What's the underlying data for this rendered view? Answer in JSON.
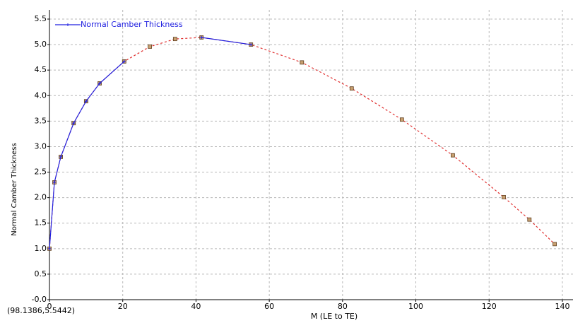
{
  "chart_data": {
    "type": "line",
    "x_label": "M (LE to TE)",
    "y_label": "Normal Camber Thickness",
    "cursor_readout": "(98.1386,5.5442)",
    "x": [
      0,
      1.35,
      3.1,
      6.6,
      10,
      13.7,
      20.4,
      27.4,
      34.3,
      41.5,
      55.0,
      68.9,
      82.5,
      96.2,
      110.1,
      124.0,
      131.0,
      137.9
    ],
    "series": [
      {
        "color": "#e03030",
        "dashed": true,
        "markers": "square",
        "values": [
          1.0,
          2.3,
          2.8,
          3.46,
          3.89,
          4.24,
          4.67,
          4.96,
          5.11,
          5.14,
          5.0,
          4.65,
          4.14,
          3.53,
          2.83,
          2.01,
          1.57,
          1.09
        ]
      },
      {
        "name": "Normal Camber Thickness",
        "color": "#2020e0",
        "dashed": false,
        "markers": "plus",
        "values": [
          1.0,
          2.3,
          2.8,
          3.46,
          3.89,
          4.24,
          4.67,
          null,
          null,
          5.14,
          5.0,
          null,
          null,
          null,
          null,
          null,
          null,
          null
        ]
      }
    ],
    "xlim": [
      0,
      142.9
    ],
    "ylim": [
      0,
      5.68
    ],
    "xticks": [
      0,
      20,
      40,
      60,
      80,
      100,
      120,
      140
    ],
    "yticks": [
      {
        "value": 0,
        "label": "-0.0"
      },
      0.5,
      {
        "value": 1,
        "label": "1.0"
      },
      1.5,
      {
        "value": 2,
        "label": "2.0"
      },
      2.5,
      {
        "value": 3,
        "label": "3.0"
      },
      3.5,
      {
        "value": 4,
        "label": "4.0"
      },
      4.5,
      {
        "value": 5,
        "label": "5.0"
      },
      5.5
    ],
    "grid": true,
    "legend": "top-left"
  }
}
